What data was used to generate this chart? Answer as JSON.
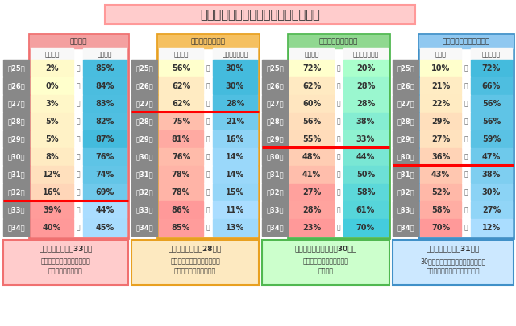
{
  "title": "高校時代の文化の境界線が明らかに！",
  "title_bg": "#ffcccc",
  "title_border": "#ff9999",
  "ages": [
    "現25歳",
    "現26歳",
    "現27歳",
    "現28歳",
    "現29歳",
    "現30歳",
    "現31歳",
    "現32歳",
    "現33歳",
    "現34歳"
  ],
  "sections": [
    {
      "header": "靴下は？",
      "header_bg": "#f4a0a0",
      "border_color": "#f07070",
      "col1_label": "ルーズ派",
      "col2_label": "ハイソ派",
      "col1_values": [
        "2%",
        "0%",
        "3%",
        "5%",
        "5%",
        "8%",
        "12%",
        "16%",
        "39%",
        "40%"
      ],
      "col2_values": [
        "85%",
        "84%",
        "83%",
        "82%",
        "87%",
        "76%",
        "74%",
        "69%",
        "44%",
        "45%"
      ],
      "col1_raw": [
        2,
        0,
        3,
        5,
        5,
        8,
        12,
        16,
        39,
        40
      ],
      "col2_raw": [
        85,
        84,
        83,
        82,
        87,
        76,
        74,
        69,
        44,
        45
      ],
      "col1_cmap": "yellow_red",
      "col2_cmap": "blue_teal",
      "wall_after_row": 7,
      "wall_label": "【ルーズ派の壁は33歳】",
      "wall_desc": "コギャル文化はこの頃を境に\n急速にトーンダウン",
      "wall_bg": "#ffcccc",
      "note_border": "#f07070"
    },
    {
      "header": "プリ機持ってた？",
      "header_bg": "#f5c060",
      "border_color": "#e8a020",
      "col1_label": "持ってた",
      "col2_label": "持ってなかった",
      "col1_values": [
        "56%",
        "62%",
        "62%",
        "75%",
        "81%",
        "76%",
        "78%",
        "78%",
        "86%",
        "85%"
      ],
      "col2_values": [
        "30%",
        "30%",
        "28%",
        "21%",
        "16%",
        "14%",
        "14%",
        "15%",
        "11%",
        "13%"
      ],
      "col1_raw": [
        56,
        62,
        62,
        75,
        81,
        76,
        78,
        78,
        86,
        85
      ],
      "col2_raw": [
        30,
        30,
        28,
        21,
        16,
        14,
        14,
        15,
        11,
        13
      ],
      "col1_cmap": "yellow_red",
      "col2_cmap": "blue_teal",
      "wall_after_row": 2,
      "wall_label": "【プリ横派の壁は28歳】",
      "wall_desc": "この年代以降はシールよりも\nデータ派が増えてきた？",
      "wall_bg": "#fde9c0",
      "note_border": "#e8a020"
    },
    {
      "header": "ケータイ小説には？",
      "header_bg": "#90d890",
      "border_color": "#50b850",
      "col1_label": "ハマった",
      "col2_label": "ハマらなかった",
      "col1_values": [
        "72%",
        "62%",
        "60%",
        "56%",
        "55%",
        "48%",
        "41%",
        "27%",
        "28%",
        "23%"
      ],
      "col2_values": [
        "20%",
        "28%",
        "28%",
        "38%",
        "33%",
        "44%",
        "50%",
        "58%",
        "61%",
        "70%"
      ],
      "col1_raw": [
        72,
        62,
        60,
        56,
        55,
        48,
        41,
        27,
        28,
        23
      ],
      "col2_raw": [
        20,
        28,
        28,
        38,
        33,
        44,
        50,
        58,
        61,
        70
      ],
      "col1_cmap": "red_yellow",
      "col2_cmap": "green_teal",
      "wall_after_row": 4,
      "wall_label": "【ケータイ小説の壁は30歳】",
      "wall_desc": "この辺りがブームの境目と\n言えそう",
      "wall_bg": "#ccffcc",
      "note_border": "#50b850"
    },
    {
      "header": "ケータイのアンテナは？",
      "header_bg": "#90c8f0",
      "border_color": "#4090c8",
      "col1_label": "伸ばす",
      "col2_label": "伸ばさない",
      "col1_values": [
        "10%",
        "21%",
        "22%",
        "29%",
        "27%",
        "36%",
        "43%",
        "52%",
        "58%",
        "70%"
      ],
      "col2_values": [
        "72%",
        "66%",
        "56%",
        "56%",
        "59%",
        "47%",
        "38%",
        "30%",
        "27%",
        "12%"
      ],
      "col1_raw": [
        10,
        21,
        22,
        29,
        27,
        36,
        43,
        52,
        58,
        70
      ],
      "col2_raw": [
        72,
        66,
        56,
        56,
        59,
        47,
        38,
        30,
        27,
        12
      ],
      "col1_cmap": "yellow_red",
      "col2_cmap": "blue_teal",
      "wall_after_row": 5,
      "wall_label": "【アンテナの壁は31歳】",
      "wall_desc": "30代以上はついアンテナを引っ張っ\nてしまったことがあるのでは？",
      "wall_bg": "#cce8ff",
      "note_border": "#4090c8"
    }
  ]
}
